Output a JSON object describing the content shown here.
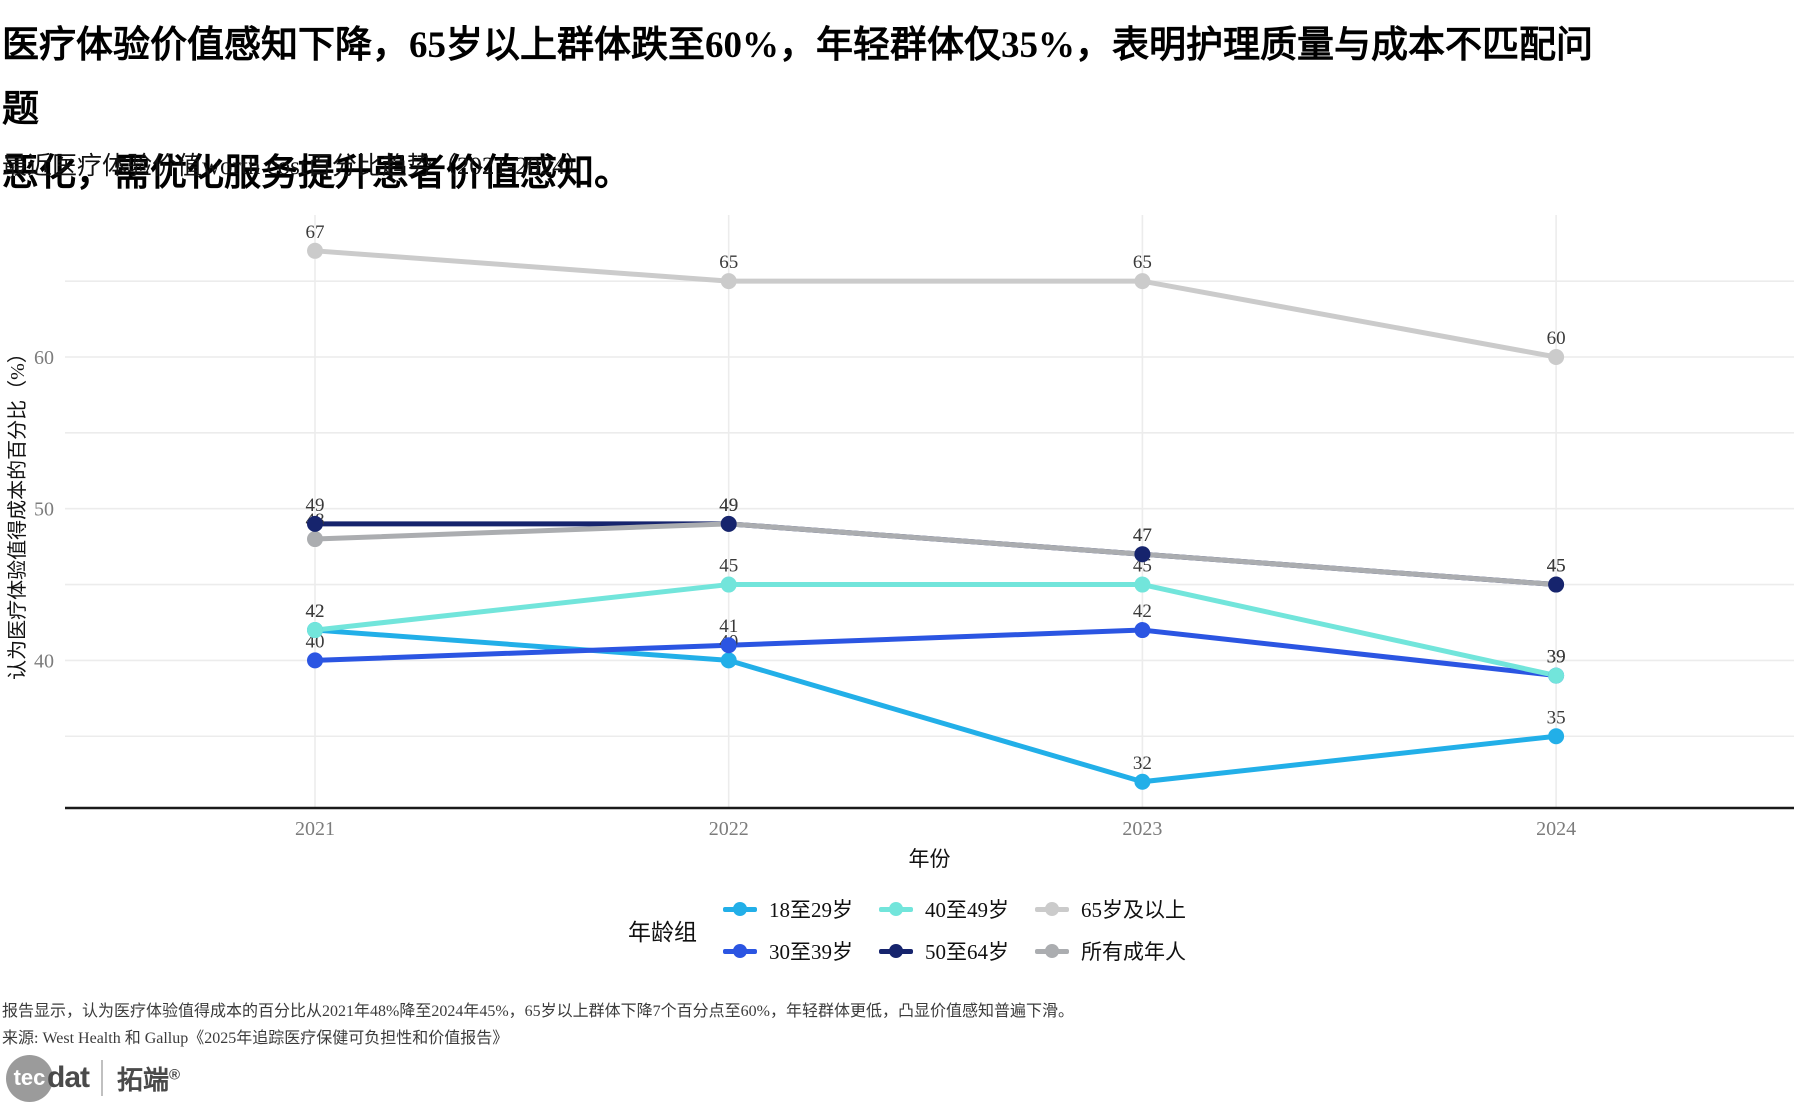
{
  "header": {
    "title_line1": "医疗体验价值感知下降，65岁以上群体跌至60%，年轻群体仅35%，表明护理质量与成本不匹配问题",
    "title_line2": "恶化，需优化服务提升患者价值感知。",
    "subtitle": "最近医疗体验价值worth cost百分比趋势（2021-2024）"
  },
  "chart_data": {
    "type": "line",
    "x": [
      2021,
      2022,
      2023,
      2024
    ],
    "xlabel": "年份",
    "ylabel": "认为医疗体验值得成本的百分比（%）",
    "yticks": [
      40,
      50,
      60
    ],
    "gridlines_y": [
      35,
      40,
      45,
      50,
      55,
      60,
      65
    ],
    "ylim": [
      30,
      69.5
    ],
    "grid": true,
    "legend_title": "年龄组",
    "legend_position": "bottom",
    "series": [
      {
        "name": "18至29岁",
        "color": "#22AFE8",
        "values": [
          42,
          40,
          32,
          35
        ]
      },
      {
        "name": "30至39岁",
        "color": "#2B55E2",
        "values": [
          40,
          41,
          42,
          39
        ]
      },
      {
        "name": "40至49岁",
        "color": "#72E5DB",
        "values": [
          42,
          45,
          45,
          39
        ]
      },
      {
        "name": "50至64岁",
        "color": "#16246D",
        "values": [
          49,
          49,
          47,
          45
        ]
      },
      {
        "name": "65岁及以上",
        "color": "#CBCBCB",
        "values": [
          67,
          65,
          65,
          60
        ]
      },
      {
        "name": "所有成年人",
        "color": "#ABADB0",
        "values": [
          48,
          49,
          47,
          45
        ]
      }
    ],
    "colors": {
      "gridline": "#ECECEC",
      "axis_line": "#1a1a1a",
      "tick_label": "#7c7c7c",
      "data_label": "#3a3a3a"
    }
  },
  "footer": {
    "note": "报告显示，认为医疗体验值得成本的百分比从2021年48%降至2024年45%，65岁以上群体下降7个百分点至60%，年轻群体更低，凸显价值感知普遍下滑。",
    "source": "来源: West Health 和 Gallup《2025年追踪医疗保健可负担性和价值报告》"
  },
  "logo": {
    "circle": "tec",
    "name": "dat",
    "brand": "拓端",
    "reg": "®"
  }
}
